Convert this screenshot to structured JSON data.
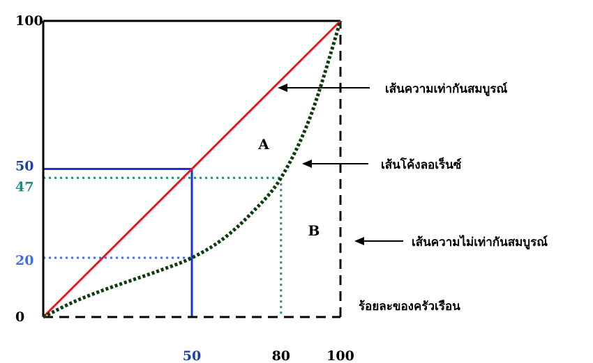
{
  "chart_data": {
    "type": "line",
    "xlim": [
      0,
      100
    ],
    "ylim": [
      0,
      100
    ],
    "x_ticks": [
      "50",
      "80",
      "100"
    ],
    "y_ticks": [
      {
        "label": "100",
        "color": "#000000"
      },
      {
        "label": "50",
        "color": "#1f3fa6"
      },
      {
        "label": "47",
        "color": "#1f8a80"
      },
      {
        "label": "20",
        "color": "#3f6fe0"
      },
      {
        "label": "0",
        "color": "#000000"
      }
    ],
    "equality_line": {
      "points": [
        [
          0,
          0
        ],
        [
          100,
          100
        ]
      ],
      "color": "#e31a1c"
    },
    "lorenz_curve": {
      "points": [
        [
          0,
          0
        ],
        [
          10,
          5
        ],
        [
          20,
          9
        ],
        [
          30,
          12.5
        ],
        [
          40,
          16
        ],
        [
          50,
          20
        ],
        [
          60,
          26
        ],
        [
          70,
          35
        ],
        [
          80,
          47
        ],
        [
          90,
          68
        ],
        [
          100,
          100
        ]
      ],
      "color": "#0b3d0b"
    },
    "perfect_inequality": {
      "points": [
        [
          0,
          0
        ],
        [
          100,
          0
        ],
        [
          100,
          100
        ]
      ],
      "color": "#000000"
    },
    "ref_blue": {
      "x": 50,
      "y": 50,
      "color": "#1a33cc"
    },
    "ref_dotted_20": {
      "x": 50,
      "y": 20,
      "color": "#3f6fe0"
    },
    "ref_teal": {
      "x": 80,
      "y": 47,
      "color": "#1f8a80"
    },
    "regions": {
      "A": "A",
      "B": "B"
    },
    "annotations": {
      "equality": "เส้นความเท่ากันสมบูรณ์",
      "lorenz": "เส้นโค้งลอเร็นซ์",
      "inequality": "เส้นความไม่เท่ากันสมบูรณ์",
      "x_label": "ร้อยละของครัวเรือน"
    },
    "box_color": "#000000"
  }
}
